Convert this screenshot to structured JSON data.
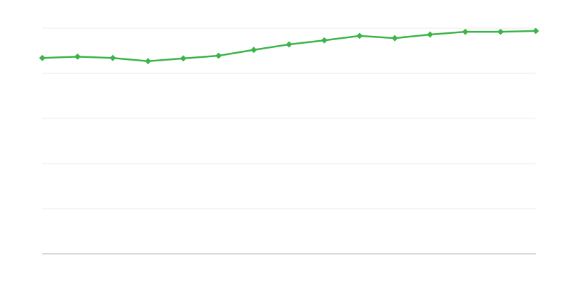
{
  "chart_data": {
    "type": "line",
    "title": "",
    "xlabel": "",
    "ylabel": "",
    "x": [
      1,
      2,
      3,
      4,
      5,
      6,
      7,
      8,
      9,
      10,
      11,
      12,
      13,
      14,
      15
    ],
    "series": [
      {
        "values": [
          4.34,
          4.37,
          4.34,
          4.27,
          4.33,
          4.39,
          4.52,
          4.64,
          4.73,
          4.83,
          4.78,
          4.86,
          4.92,
          4.92,
          4.94
        ],
        "color": "#3bb54a"
      }
    ],
    "ylim": [
      0,
      5
    ],
    "xlim": [
      1,
      15
    ],
    "grid": true,
    "gridline_count": 5,
    "marker": "diamond",
    "colors": {
      "line": "#3bb54a",
      "grid": "#ebebeb",
      "axis": "#b0b0b0"
    }
  }
}
